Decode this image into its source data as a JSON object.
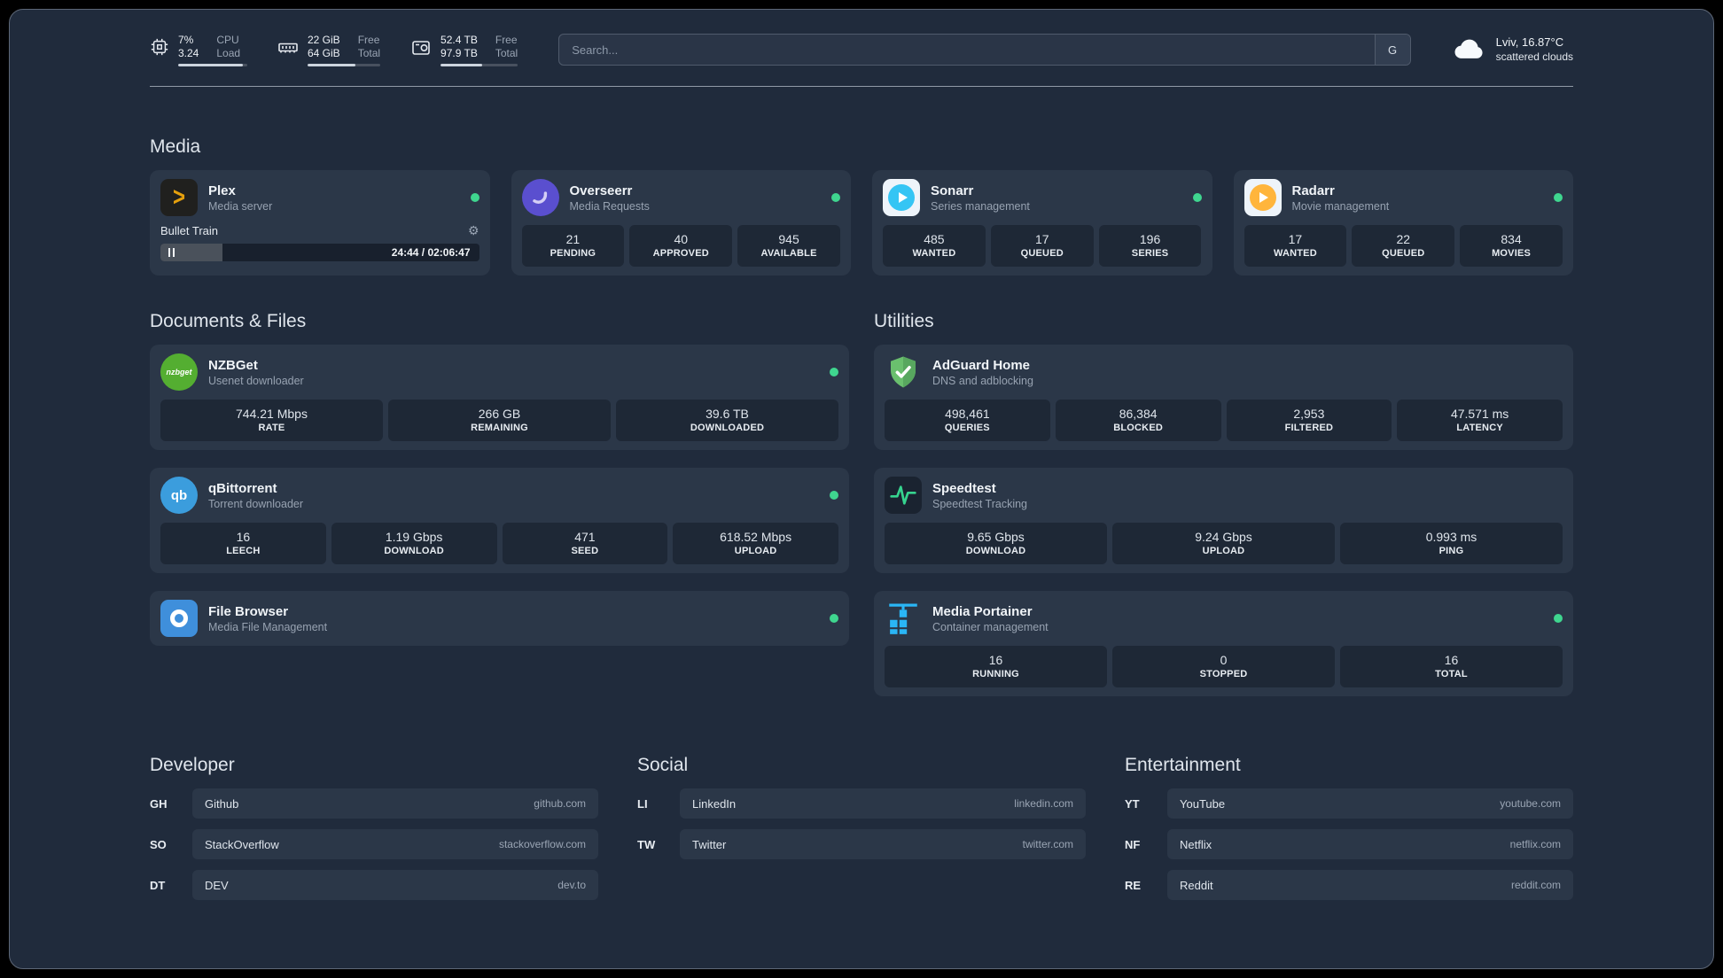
{
  "topbar": {
    "cpu": {
      "usage": "7%",
      "load": "3.24",
      "label_top": "CPU",
      "label_bottom": "Load",
      "bar_pct": 93
    },
    "memory": {
      "free": "22 GiB",
      "total": "64 GiB",
      "label_top": "Free",
      "label_bottom": "Total",
      "bar_pct": 66
    },
    "disk": {
      "free": "52.4 TB",
      "total": "97.9 TB",
      "label_top": "Free",
      "label_bottom": "Total",
      "bar_pct": 54
    },
    "search": {
      "placeholder": "Search...",
      "provider": "G"
    },
    "weather": {
      "location": "Lviv, 16.87°C",
      "condition": "scattered clouds"
    }
  },
  "icons": {
    "plex_glyph": ">",
    "nzbget_text": "nzbget",
    "qbittorrent_text": "qb",
    "gear": "⚙"
  },
  "media": {
    "title": "Media",
    "plex": {
      "name": "Plex",
      "desc": "Media server",
      "now_playing": {
        "title": "Bullet Train",
        "time": "24:44 / 02:06:47",
        "progress_pct": 19.5
      }
    },
    "overseerr": {
      "name": "Overseerr",
      "desc": "Media Requests",
      "stats": [
        {
          "value": "21",
          "label": "PENDING"
        },
        {
          "value": "40",
          "label": "APPROVED"
        },
        {
          "value": "945",
          "label": "AVAILABLE"
        }
      ]
    },
    "sonarr": {
      "name": "Sonarr",
      "desc": "Series management",
      "stats": [
        {
          "value": "485",
          "label": "WANTED"
        },
        {
          "value": "17",
          "label": "QUEUED"
        },
        {
          "value": "196",
          "label": "SERIES"
        }
      ]
    },
    "radarr": {
      "name": "Radarr",
      "desc": "Movie management",
      "stats": [
        {
          "value": "17",
          "label": "WANTED"
        },
        {
          "value": "22",
          "label": "QUEUED"
        },
        {
          "value": "834",
          "label": "MOVIES"
        }
      ]
    }
  },
  "documents": {
    "title": "Documents & Files",
    "nzbget": {
      "name": "NZBGet",
      "desc": "Usenet downloader",
      "stats": [
        {
          "value": "744.21 Mbps",
          "label": "RATE"
        },
        {
          "value": "266 GB",
          "label": "REMAINING"
        },
        {
          "value": "39.6 TB",
          "label": "DOWNLOADED"
        }
      ]
    },
    "qbittorrent": {
      "name": "qBittorrent",
      "desc": "Torrent downloader",
      "stats": [
        {
          "value": "16",
          "label": "LEECH"
        },
        {
          "value": "1.19 Gbps",
          "label": "DOWNLOAD"
        },
        {
          "value": "471",
          "label": "SEED"
        },
        {
          "value": "618.52 Mbps",
          "label": "UPLOAD"
        }
      ]
    },
    "filebrowser": {
      "name": "File Browser",
      "desc": "Media File Management"
    }
  },
  "utilities": {
    "title": "Utilities",
    "adguard": {
      "name": "AdGuard Home",
      "desc": "DNS and adblocking",
      "stats": [
        {
          "value": "498,461",
          "label": "QUERIES"
        },
        {
          "value": "86,384",
          "label": "BLOCKED"
        },
        {
          "value": "2,953",
          "label": "FILTERED"
        },
        {
          "value": "47.571 ms",
          "label": "LATENCY"
        }
      ]
    },
    "speedtest": {
      "name": "Speedtest",
      "desc": "Speedtest Tracking",
      "stats": [
        {
          "value": "9.65 Gbps",
          "label": "DOWNLOAD"
        },
        {
          "value": "9.24 Gbps",
          "label": "UPLOAD"
        },
        {
          "value": "0.993 ms",
          "label": "PING"
        }
      ]
    },
    "portainer": {
      "name": "Media Portainer",
      "desc": "Container management",
      "stats": [
        {
          "value": "16",
          "label": "RUNNING"
        },
        {
          "value": "0",
          "label": "STOPPED"
        },
        {
          "value": "16",
          "label": "TOTAL"
        }
      ]
    }
  },
  "bookmarks": {
    "developer": {
      "title": "Developer",
      "items": [
        {
          "abbr": "GH",
          "name": "Github",
          "url": "github.com"
        },
        {
          "abbr": "SO",
          "name": "StackOverflow",
          "url": "stackoverflow.com"
        },
        {
          "abbr": "DT",
          "name": "DEV",
          "url": "dev.to"
        }
      ]
    },
    "social": {
      "title": "Social",
      "items": [
        {
          "abbr": "LI",
          "name": "LinkedIn",
          "url": "linkedin.com"
        },
        {
          "abbr": "TW",
          "name": "Twitter",
          "url": "twitter.com"
        }
      ]
    },
    "entertainment": {
      "title": "Entertainment",
      "items": [
        {
          "abbr": "YT",
          "name": "YouTube",
          "url": "youtube.com"
        },
        {
          "abbr": "NF",
          "name": "Netflix",
          "url": "netflix.com"
        },
        {
          "abbr": "RE",
          "name": "Reddit",
          "url": "reddit.com"
        }
      ]
    }
  }
}
